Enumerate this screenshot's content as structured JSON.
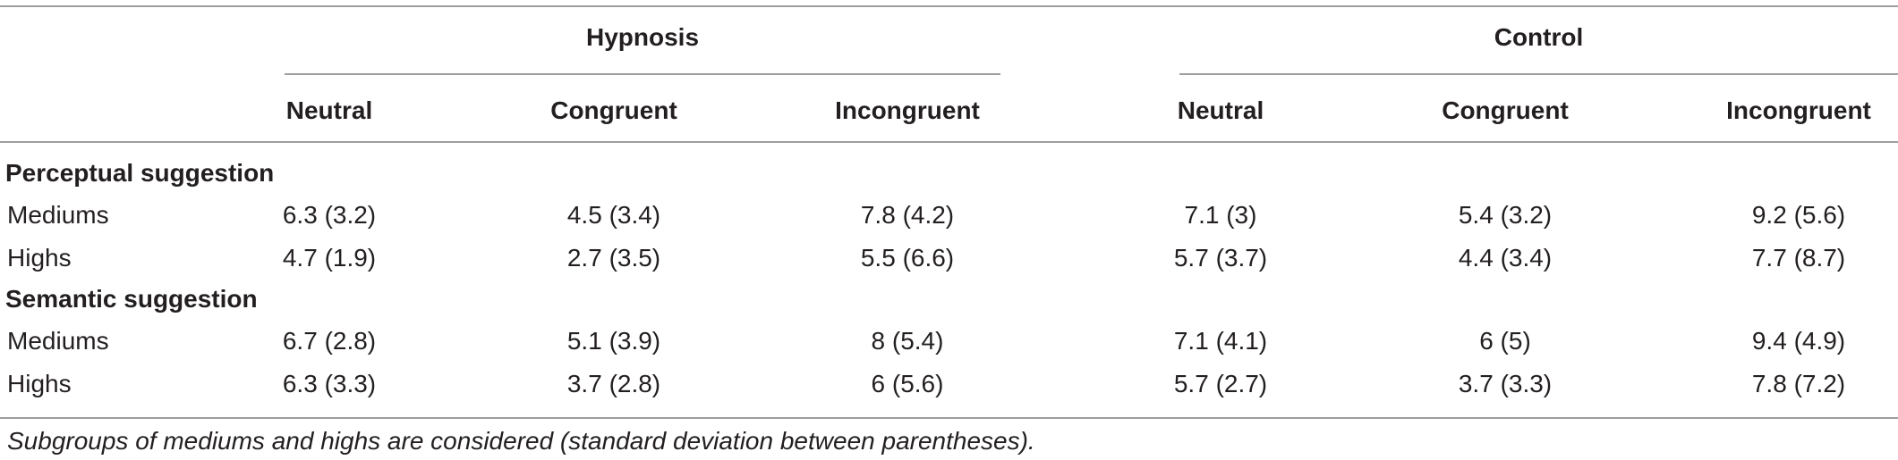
{
  "table": {
    "group_headers": [
      "Hypnosis",
      "Control"
    ],
    "column_headers": [
      "Neutral",
      "Congruent",
      "Incongruent",
      "Neutral",
      "Congruent",
      "Incongruent"
    ],
    "sections": [
      {
        "title": "Perceptual suggestion",
        "rows": [
          {
            "label": "Mediums",
            "cells": [
              "6.3 (3.2)",
              "4.5 (3.4)",
              "7.8 (4.2)",
              "7.1 (3)",
              "5.4 (3.2)",
              "9.2 (5.6)"
            ]
          },
          {
            "label": "Highs",
            "cells": [
              "4.7 (1.9)",
              "2.7 (3.5)",
              "5.5 (6.6)",
              "5.7 (3.7)",
              "4.4 (3.4)",
              "7.7 (8.7)"
            ]
          }
        ]
      },
      {
        "title": "Semantic suggestion",
        "rows": [
          {
            "label": "Mediums",
            "cells": [
              "6.7 (2.8)",
              "5.1 (3.9)",
              "8 (5.4)",
              "7.1 (4.1)",
              "6 (5)",
              "9.4 (4.9)"
            ]
          },
          {
            "label": "Highs",
            "cells": [
              "6.3 (3.3)",
              "3.7 (2.8)",
              "6 (5.6)",
              "5.7 (2.7)",
              "3.7 (3.3)",
              "7.8 (7.2)"
            ]
          }
        ]
      }
    ],
    "footnote": "Subgroups of mediums and highs are considered (standard deviation between parentheses)."
  }
}
